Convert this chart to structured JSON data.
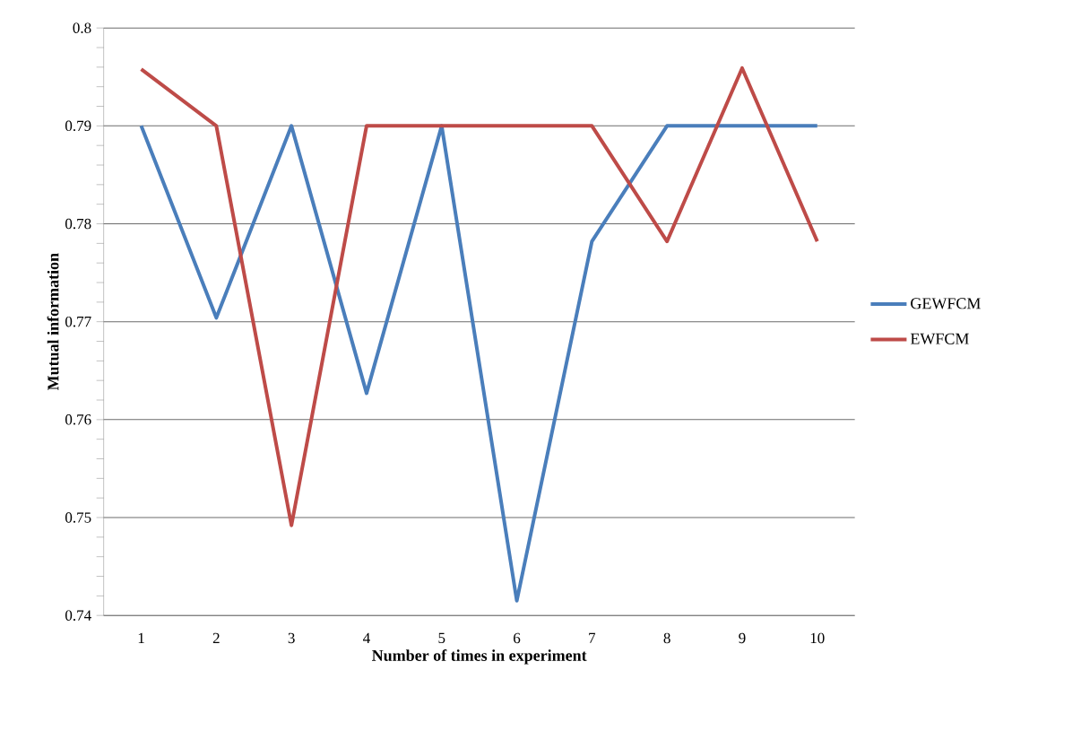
{
  "chart_data": {
    "type": "line",
    "xlabel": "Number of times in experiment",
    "ylabel": "Mutual information",
    "categories": [
      "1",
      "2",
      "3",
      "4",
      "5",
      "6",
      "7",
      "8",
      "9",
      "10"
    ],
    "series": [
      {
        "name": "GEWFCM",
        "color": "#4a7ebb",
        "values": [
          0.79,
          0.7704,
          0.79,
          0.7627,
          0.79,
          0.7415,
          0.7782,
          0.79,
          0.79,
          0.79
        ]
      },
      {
        "name": "EWFCM",
        "color": "#be4b48",
        "values": [
          0.7958,
          0.79,
          0.7492,
          0.79,
          0.79,
          0.79,
          0.79,
          0.7782,
          0.7959,
          0.7782
        ]
      }
    ],
    "ylim": [
      0.74,
      0.8
    ],
    "yticks": [
      0.74,
      0.75,
      0.76,
      0.77,
      0.78,
      0.79,
      0.8
    ],
    "grid": "y",
    "legend": "right",
    "line_style": "solid"
  }
}
